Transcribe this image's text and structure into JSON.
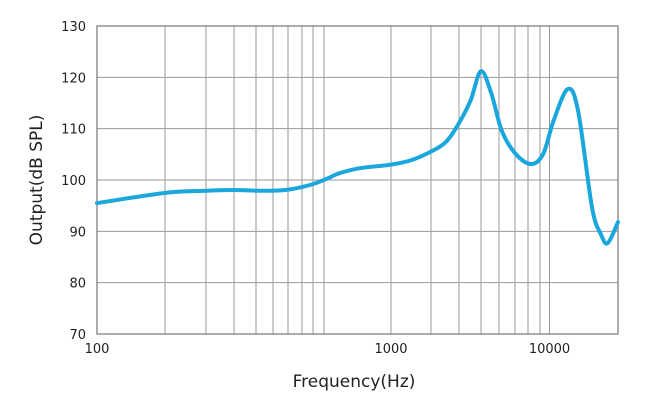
{
  "chart_data": {
    "type": "line",
    "title": "",
    "xlabel": "Frequency(Hz)",
    "ylabel": "Output(dB SPL)",
    "xscale": "log",
    "xlim": [
      100,
      20000
    ],
    "ylim": [
      70,
      130
    ],
    "x_tick_labels": [
      {
        "value": 100,
        "label": "100"
      },
      {
        "value": 1000,
        "label": "1000"
      },
      {
        "value": 10000,
        "label": "10000"
      }
    ],
    "y_ticks": [
      130,
      120,
      110,
      100,
      90,
      80,
      70
    ],
    "grid": true,
    "series": [
      {
        "name": "Output",
        "color": "#1aa7dd",
        "x": [
          100,
          171,
          235,
          292,
          367,
          444,
          536,
          614,
          666,
          784,
          1000,
          1352,
          1829,
          2234,
          2664,
          3177,
          3695,
          4300,
          5000,
          6110,
          7660,
          9130,
          10430,
          12020,
          13350,
          15370,
          16790,
          18020,
          20000
        ],
        "y": [
          95.5,
          97.5,
          97.9,
          98.05,
          97.9,
          98.1,
          99.1,
          100.4,
          101.3,
          102.3,
          103.0,
          103.9,
          105.7,
          107.5,
          110.9,
          115.5,
          121.2,
          116.8,
          109.6,
          105.1,
          103.1,
          105.1,
          111.6,
          117.7,
          113.5,
          94.7,
          89.5,
          87.7,
          91.8
        ]
      }
    ]
  }
}
